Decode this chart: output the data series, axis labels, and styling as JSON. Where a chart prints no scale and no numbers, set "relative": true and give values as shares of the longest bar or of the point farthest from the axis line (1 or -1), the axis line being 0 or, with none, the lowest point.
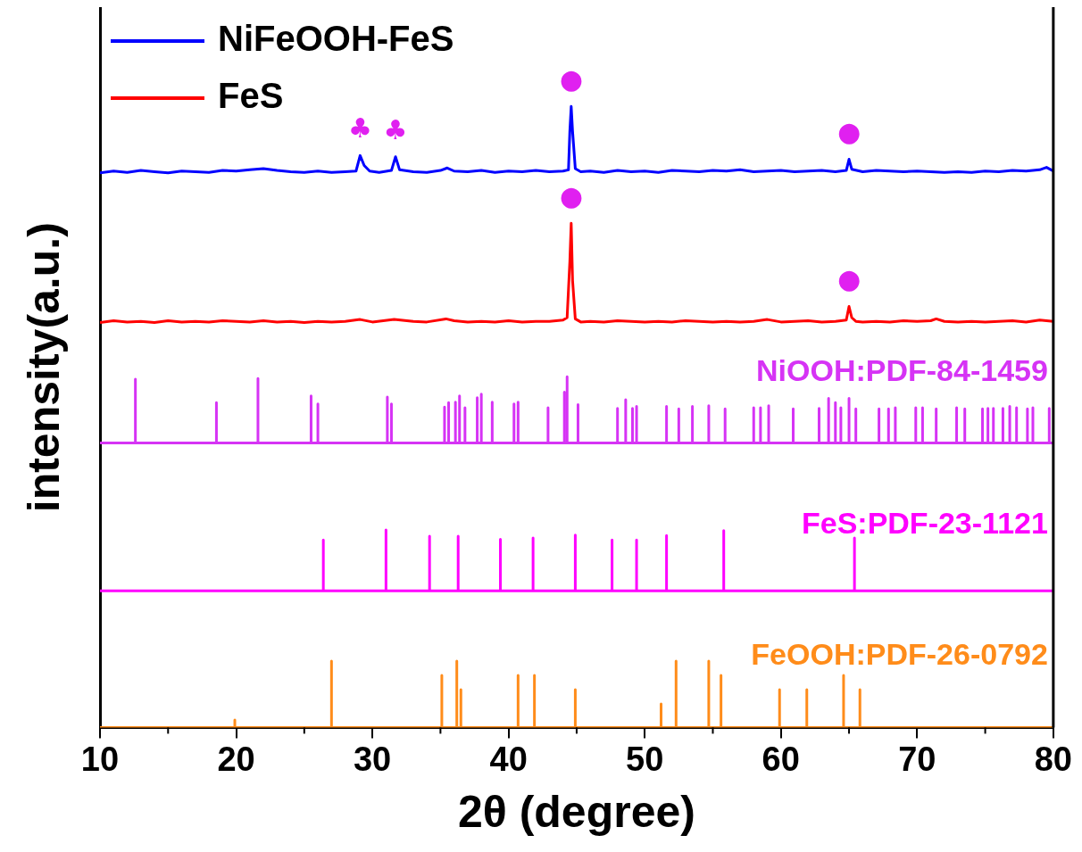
{
  "chart_data": {
    "type": "line",
    "xlabel": "2θ (degree)",
    "ylabel": "intensity(a.u.)",
    "relative": true,
    "xlim": [
      10,
      80
    ],
    "xticks": [
      10,
      {
        "value": 15,
        "label": null
      },
      20,
      {
        "value": 25,
        "label": null
      },
      30,
      {
        "value": 35,
        "label": null
      },
      40,
      {
        "value": 45,
        "label": null
      },
      50,
      {
        "value": 55,
        "label": null
      },
      60,
      {
        "value": 65,
        "label": null
      },
      70,
      {
        "value": 75,
        "label": null
      },
      80
    ],
    "legend": "top left",
    "marker": "none",
    "line_style": "solid",
    "series": [
      {
        "name": "NiFeOOH-FeS",
        "color": "#0000ff",
        "x": [
          10,
          11,
          12,
          13,
          14,
          15,
          16,
          17,
          18,
          19,
          20,
          21,
          22,
          23,
          24,
          25,
          26,
          27,
          28,
          28.8,
          29.1,
          29.4,
          29.8,
          30.5,
          31.4,
          31.7,
          32,
          33,
          34,
          35,
          35.5,
          36,
          37,
          38,
          39,
          40,
          41,
          42,
          43,
          44,
          44.4,
          44.5,
          44.6,
          44.7,
          44.9,
          45.3,
          46,
          47,
          48,
          49,
          50,
          51,
          52,
          53,
          54,
          55,
          56,
          57,
          58,
          59,
          60,
          61,
          62,
          63,
          64,
          64.8,
          65,
          65.2,
          66,
          67,
          68,
          69,
          70,
          71,
          72,
          73,
          74,
          75,
          76,
          77,
          78,
          79,
          79.5,
          80
        ],
        "values": [
          0.893,
          0.896,
          0.894,
          0.897,
          0.895,
          0.893,
          0.896,
          0.895,
          0.894,
          0.897,
          0.896,
          0.898,
          0.9,
          0.897,
          0.895,
          0.894,
          0.896,
          0.894,
          0.895,
          0.896,
          0.921,
          0.905,
          0.896,
          0.894,
          0.897,
          0.919,
          0.898,
          0.895,
          0.894,
          0.897,
          0.901,
          0.896,
          0.895,
          0.897,
          0.894,
          0.896,
          0.895,
          0.897,
          0.895,
          0.896,
          0.898,
          0.96,
          1,
          0.96,
          0.9,
          0.895,
          0.896,
          0.894,
          0.897,
          0.895,
          0.896,
          0.894,
          0.897,
          0.896,
          0.895,
          0.897,
          0.896,
          0.898,
          0.895,
          0.896,
          0.897,
          0.895,
          0.896,
          0.897,
          0.895,
          0.897,
          0.915,
          0.899,
          0.895,
          0.897,
          0.896,
          0.895,
          0.896,
          0.895,
          0.894,
          0.895,
          0.894,
          0.896,
          0.895,
          0.897,
          0.896,
          0.898,
          0.902,
          0.896
        ]
      },
      {
        "name": "FeS",
        "color": "#ff0000",
        "x": [
          10,
          11,
          12,
          13,
          14,
          15,
          16,
          17,
          18,
          19,
          20,
          21,
          22,
          23,
          24,
          25,
          26,
          27,
          28,
          29.1,
          30,
          31.6,
          33,
          34,
          35.4,
          36,
          37,
          38,
          39,
          40,
          41,
          42,
          43,
          44,
          44.3,
          44.5,
          44.6,
          44.7,
          44.9,
          45.3,
          46,
          47,
          48,
          49,
          50,
          51,
          52,
          53,
          54,
          55,
          56,
          57,
          58,
          59,
          60,
          61,
          62,
          63,
          64,
          64.8,
          65,
          65.2,
          65.5,
          66,
          67,
          68,
          69,
          70,
          71,
          71.4,
          72,
          73,
          74,
          75,
          76,
          77,
          78,
          79,
          80
        ],
        "values": [
          0.652,
          0.655,
          0.653,
          0.654,
          0.652,
          0.655,
          0.653,
          0.654,
          0.653,
          0.655,
          0.654,
          0.653,
          0.655,
          0.653,
          0.654,
          0.652,
          0.654,
          0.653,
          0.654,
          0.657,
          0.653,
          0.657,
          0.654,
          0.653,
          0.658,
          0.655,
          0.653,
          0.654,
          0.653,
          0.655,
          0.653,
          0.654,
          0.654,
          0.656,
          0.66,
          0.75,
          0.812,
          0.72,
          0.658,
          0.653,
          0.654,
          0.653,
          0.655,
          0.654,
          0.653,
          0.654,
          0.653,
          0.655,
          0.654,
          0.653,
          0.654,
          0.653,
          0.654,
          0.657,
          0.653,
          0.654,
          0.655,
          0.653,
          0.654,
          0.656,
          0.678,
          0.66,
          0.654,
          0.653,
          0.654,
          0.653,
          0.655,
          0.654,
          0.655,
          0.658,
          0.654,
          0.653,
          0.654,
          0.653,
          0.654,
          0.655,
          0.653,
          0.656,
          0.654
        ]
      },
      {
        "name": "NiOOH:PDF-84-1459",
        "color": "#d633f5",
        "x": [
          10,
          12.6,
          12.6,
          12.6,
          18.55,
          18.55,
          18.55,
          21.6,
          21.6,
          21.6,
          25.5,
          25.5,
          25.5,
          26.0,
          26.0,
          26.0,
          31.1,
          31.1,
          31.1,
          31.4,
          31.4,
          31.4,
          35.3,
          35.3,
          35.3,
          35.6,
          35.6,
          35.6,
          36.1,
          36.1,
          36.1,
          36.4,
          36.4,
          36.4,
          36.8,
          36.8,
          36.8,
          37.7,
          37.7,
          37.7,
          38.0,
          38.0,
          38.0,
          38.8,
          38.8,
          38.8,
          40.4,
          40.4,
          40.4,
          40.7,
          40.7,
          40.7,
          42.9,
          42.9,
          42.9,
          44.1,
          44.1,
          44.1,
          44.3,
          44.3,
          44.3,
          45.1,
          45.1,
          45.1,
          48.0,
          48.0,
          48.0,
          48.6,
          48.6,
          48.6,
          49.1,
          49.1,
          49.1,
          49.4,
          49.4,
          49.4,
          51.6,
          51.6,
          51.6,
          52.5,
          52.5,
          52.5,
          53.5,
          53.5,
          53.5,
          54.7,
          54.7,
          54.7,
          55.9,
          55.9,
          55.9,
          58.0,
          58.0,
          58.0,
          58.5,
          58.5,
          58.5,
          59.1,
          59.1,
          59.1,
          60.9,
          60.9,
          60.9,
          62.8,
          62.8,
          62.8,
          63.5,
          63.5,
          63.5,
          64.0,
          64.0,
          64.0,
          64.4,
          64.4,
          64.4,
          65.0,
          65.0,
          65.0,
          65.5,
          65.5,
          65.5,
          67.2,
          67.2,
          67.2,
          67.9,
          67.9,
          67.9,
          68.4,
          68.4,
          68.4,
          69.9,
          69.9,
          69.9,
          70.4,
          70.4,
          70.4,
          71.4,
          71.4,
          71.4,
          72.9,
          72.9,
          72.9,
          73.5,
          73.5,
          73.5,
          74.8,
          74.8,
          74.8,
          75.2,
          75.2,
          75.2,
          75.6,
          75.6,
          75.6,
          76.3,
          76.3,
          76.3,
          76.8,
          76.8,
          76.8,
          77.3,
          77.3,
          77.3,
          78.1,
          78.1,
          78.1,
          78.5,
          78.5,
          78.5,
          79.7,
          79.7,
          79.7,
          80
        ],
        "values": [
          0.458,
          0.458,
          0.561,
          0.458,
          0.458,
          0.523,
          0.458,
          0.458,
          0.562,
          0.458,
          0.458,
          0.534,
          0.458,
          0.458,
          0.521,
          0.458,
          0.458,
          0.532,
          0.458,
          0.458,
          0.521,
          0.458,
          0.458,
          0.516,
          0.458,
          0.458,
          0.523,
          0.458,
          0.458,
          0.524,
          0.458,
          0.458,
          0.534,
          0.458,
          0.458,
          0.515,
          0.458,
          0.458,
          0.531,
          0.458,
          0.458,
          0.537,
          0.458,
          0.458,
          0.524,
          0.458,
          0.458,
          0.521,
          0.458,
          0.458,
          0.524,
          0.458,
          0.458,
          0.515,
          0.458,
          0.458,
          0.54,
          0.458,
          0.458,
          0.565,
          0.458,
          0.458,
          0.52,
          0.458,
          0.458,
          0.514,
          0.458,
          0.458,
          0.528,
          0.458,
          0.458,
          0.514,
          0.458,
          0.458,
          0.517,
          0.458,
          0.458,
          0.517,
          0.458,
          0.458,
          0.513,
          0.458,
          0.458,
          0.517,
          0.458,
          0.458,
          0.518,
          0.458,
          0.458,
          0.513,
          0.458,
          0.458,
          0.515,
          0.458,
          0.458,
          0.515,
          0.458,
          0.458,
          0.518,
          0.458,
          0.458,
          0.513,
          0.458,
          0.458,
          0.514,
          0.458,
          0.458,
          0.53,
          0.458,
          0.458,
          0.523,
          0.458,
          0.458,
          0.515,
          0.458,
          0.458,
          0.53,
          0.458,
          0.458,
          0.513,
          0.458,
          0.458,
          0.513,
          0.458,
          0.458,
          0.513,
          0.458,
          0.458,
          0.515,
          0.458,
          0.458,
          0.515,
          0.458,
          0.458,
          0.515,
          0.458,
          0.458,
          0.513,
          0.458,
          0.458,
          0.515,
          0.458,
          0.458,
          0.513,
          0.458,
          0.458,
          0.513,
          0.458,
          0.458,
          0.514,
          0.458,
          0.458,
          0.514,
          0.458,
          0.458,
          0.514,
          0.458,
          0.458,
          0.517,
          0.458,
          0.458,
          0.515,
          0.458,
          0.458,
          0.513,
          0.458,
          0.458,
          0.515,
          0.458,
          0.458,
          0.514,
          0.458,
          0.458
        ]
      },
      {
        "name": "FeS:PDF-23-1121",
        "color": "#ff00ff",
        "x": [
          10,
          26.4,
          26.4,
          26.4,
          31.0,
          31.0,
          31.0,
          34.2,
          34.2,
          34.2,
          36.3,
          36.3,
          36.3,
          39.4,
          39.4,
          39.4,
          41.8,
          41.8,
          41.8,
          44.9,
          44.9,
          44.9,
          47.6,
          47.6,
          47.6,
          49.4,
          49.4,
          49.4,
          51.6,
          51.6,
          51.6,
          55.8,
          55.8,
          55.8,
          65.4,
          65.4,
          65.4,
          80
        ],
        "values": [
          0.22,
          0.22,
          0.302,
          0.22,
          0.22,
          0.318,
          0.22,
          0.22,
          0.308,
          0.22,
          0.22,
          0.308,
          0.22,
          0.22,
          0.303,
          0.22,
          0.22,
          0.305,
          0.22,
          0.22,
          0.31,
          0.22,
          0.22,
          0.302,
          0.22,
          0.22,
          0.302,
          0.22,
          0.22,
          0.309,
          0.22,
          0.22,
          0.317,
          0.22,
          0.22,
          0.305,
          0.22,
          0.22
        ]
      },
      {
        "name": "FeOOH:PDF-26-0792",
        "color": "#ff8c1a",
        "x": [
          10,
          19.9,
          19.9,
          19.9,
          27.0,
          27.0,
          27.0,
          35.1,
          35.1,
          35.1,
          36.2,
          36.2,
          36.2,
          36.5,
          36.5,
          36.5,
          40.7,
          40.7,
          40.7,
          41.9,
          41.9,
          41.9,
          44.9,
          44.9,
          44.9,
          51.2,
          51.2,
          51.2,
          52.3,
          52.3,
          52.3,
          54.7,
          54.7,
          54.7,
          55.6,
          55.6,
          55.6,
          59.9,
          59.9,
          59.9,
          61.9,
          61.9,
          61.9,
          64.6,
          64.6,
          64.6,
          65.8,
          65.8,
          65.8,
          80
        ],
        "values": [
          0,
          0,
          0.012,
          0,
          0,
          0.107,
          0,
          0,
          0.084,
          0,
          0,
          0.107,
          0,
          0,
          0.061,
          0,
          0,
          0.084,
          0,
          0,
          0.084,
          0,
          0,
          0.061,
          0,
          0,
          0.038,
          0,
          0,
          0.107,
          0,
          0,
          0.107,
          0,
          0,
          0.084,
          0,
          0,
          0.061,
          0,
          0,
          0.061,
          0,
          0,
          0.084,
          0,
          0,
          0.061,
          0,
          0
        ]
      }
    ],
    "annotations": [
      {
        "text": "♣",
        "x": 29.1,
        "y": 0.921
      },
      {
        "text": "♣",
        "x": 31.7,
        "y": 0.919
      },
      {
        "text": "●",
        "x": 44.6,
        "y": 1
      },
      {
        "text": "●",
        "x": 65.0,
        "y": 0.915
      },
      {
        "text": "●",
        "x": 44.6,
        "y": 0.812
      },
      {
        "text": "●",
        "x": 65.0,
        "y": 0.678
      }
    ]
  }
}
